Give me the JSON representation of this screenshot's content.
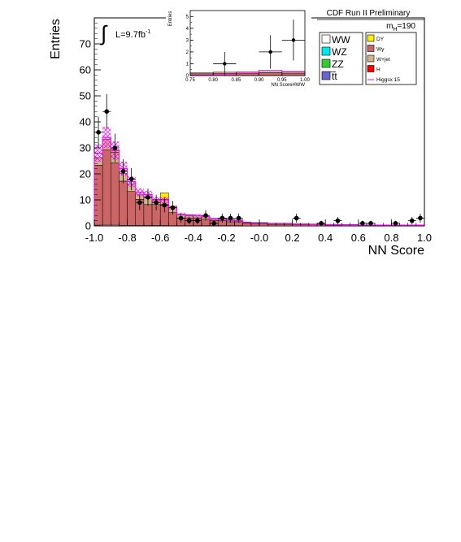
{
  "chart_data": [
    {
      "type": "bar",
      "stacked": true,
      "xlabel": "NN Score",
      "ylabel": "Entries",
      "xlim": [
        -1.0,
        1.0
      ],
      "ylim": [
        0,
        80
      ],
      "x_ticks": [
        "-1.0",
        "-0.8",
        "-0.6",
        "-0.4",
        "-0.2",
        "-0.0",
        "0.2",
        "0.4",
        "0.6",
        "0.8",
        "1.0"
      ],
      "y_ticks": [
        "0",
        "10",
        "20",
        "30",
        "40",
        "50",
        "60",
        "70"
      ],
      "bin_width": 0.05,
      "x": [
        -0.975,
        -0.925,
        -0.875,
        -0.825,
        -0.775,
        -0.725,
        -0.675,
        -0.625,
        -0.575,
        -0.525,
        -0.475,
        -0.425,
        -0.375,
        -0.325,
        -0.275,
        -0.225,
        -0.175,
        -0.125,
        -0.075,
        -0.025,
        0.025,
        0.075,
        0.125,
        0.175,
        0.225,
        0.275,
        0.325,
        0.375,
        0.425,
        0.475,
        0.525,
        0.575,
        0.625,
        0.675,
        0.725,
        0.775,
        0.825,
        0.875,
        0.925,
        0.975
      ],
      "series": [
        {
          "name": "WW",
          "color": "#ffffff",
          "values": [
            0.3,
            0.3,
            0.3,
            0.2,
            0.2,
            0.2,
            0.2,
            0.2,
            0.2,
            0.1,
            0.1,
            0.1,
            0.1,
            0.1,
            0.1,
            0.1,
            0.1,
            0.1,
            0,
            0,
            0,
            0,
            0,
            0,
            0,
            0,
            0,
            0,
            0,
            0,
            0,
            0,
            0,
            0,
            0,
            0,
            0,
            0,
            0,
            0
          ]
        },
        {
          "name": "Wγ",
          "color": "#cc6666",
          "values": [
            23,
            29,
            24,
            17,
            13,
            10,
            8,
            8,
            8,
            5,
            3,
            3,
            3,
            2.5,
            2,
            2,
            1.5,
            1.5,
            1,
            0.8,
            0.8,
            0.6,
            0.6,
            0.6,
            0.5,
            0.5,
            0.4,
            0.4,
            0.3,
            0.3,
            0.3,
            0.3,
            0.2,
            0.2,
            0.2,
            0.2,
            0.2,
            0.2,
            0.2,
            0.2
          ]
        },
        {
          "name": "W+jet",
          "color": "#d2b48c",
          "values": [
            3,
            4,
            4,
            3,
            3,
            2,
            3,
            2,
            2,
            2,
            1.5,
            1.2,
            1,
            1,
            0.8,
            0.8,
            0.8,
            0.7,
            0.5,
            0.5,
            0.5,
            0.4,
            0.4,
            0.4,
            0.3,
            0.3,
            0.3,
            0.3,
            0.3,
            0.3,
            0.2,
            0.2,
            0.2,
            0.2,
            0.2,
            0.2,
            0.2,
            0.2,
            0.2,
            0.2
          ]
        },
        {
          "name": "DY",
          "color": "#ffee00",
          "values": [
            0,
            0,
            1,
            0,
            0,
            0,
            0,
            0,
            2.5,
            0.5,
            0,
            0,
            0,
            0,
            0,
            0,
            0,
            0,
            0,
            0,
            0,
            0,
            0,
            0,
            0,
            0,
            0,
            0,
            0,
            0,
            0,
            0,
            0,
            0,
            0,
            0,
            0,
            0,
            0,
            0
          ]
        },
        {
          "name": "Data",
          "kind": "points",
          "values": [
            36,
            44,
            30,
            21,
            18,
            9,
            11,
            9,
            8,
            7,
            3,
            2,
            2,
            4,
            1,
            3,
            3,
            3,
            0,
            0,
            0,
            0,
            0,
            0,
            3,
            0,
            0,
            1,
            0,
            2,
            0,
            0,
            1,
            1,
            0,
            0,
            1,
            0,
            2,
            3
          ]
        },
        {
          "name": "Higgsx 15",
          "kind": "line",
          "color": "#ff00ff",
          "values": [
            28,
            34,
            29,
            22,
            17,
            13,
            12,
            10,
            10,
            7,
            4.5,
            4,
            4,
            3.5,
            2.6,
            2.6,
            2.1,
            2,
            1.3,
            1,
            1,
            0.8,
            0.8,
            0.8,
            0.6,
            0.6,
            0.5,
            0.5,
            0.4,
            0.4,
            0.3,
            0.3,
            0.3,
            0.3,
            0.3,
            0.3,
            0.3,
            0.3,
            0.3,
            0.3
          ]
        }
      ],
      "annotations": {
        "lumi": "L=9.7fb",
        "lumi_sup": "-1",
        "integral": "∫",
        "header": "CDF Run II Preliminary",
        "mass_label": "m",
        "mass_sub": "H",
        "mass_value": "=190"
      },
      "legend": {
        "placement": "top-right",
        "left": [
          {
            "label": "WW",
            "color": "#ffffff"
          },
          {
            "label": "WZ",
            "color": "#00e5ee"
          },
          {
            "label": "ZZ",
            "color": "#33cc33"
          },
          {
            "label": "t̅t",
            "color": "#6666cc"
          }
        ],
        "right": [
          {
            "label": "DY",
            "color": "#ffee00"
          },
          {
            "label": "Wγ",
            "color": "#cc6666"
          },
          {
            "label": "W+jet",
            "color": "#d2b48c"
          },
          {
            "label": "H",
            "color": "#ff0000"
          },
          {
            "label": "Higgsx 15",
            "color": "#ff00ff",
            "line": true
          }
        ]
      }
    },
    {
      "type": "bar",
      "stacked": true,
      "inset": true,
      "xlabel": "NN ScoreHWW",
      "ylabel": "Entries",
      "xlim": [
        0.75,
        1.0
      ],
      "ylim": [
        0,
        5.5
      ],
      "x_ticks": [
        "0.75",
        "0.80",
        "0.85",
        "0.90",
        "0.95",
        "1.00"
      ],
      "y_ticks": [
        "0",
        "1",
        "2",
        "3",
        "4",
        "5"
      ],
      "bin_width": 0.05,
      "x": [
        0.775,
        0.825,
        0.875,
        0.925,
        0.975
      ],
      "series": [
        {
          "name": "Wγ",
          "color": "#cc6666",
          "values": [
            0.15,
            0.2,
            0.2,
            0.25,
            0.2
          ]
        },
        {
          "name": "W+jet",
          "color": "#d2b48c",
          "values": [
            0.1,
            0.1,
            0.1,
            0.05,
            0.1
          ]
        },
        {
          "name": "Higgsx 15",
          "kind": "line",
          "color": "#ff00ff",
          "values": [
            0.05,
            0.15,
            0.3,
            0.45,
            0.35
          ]
        },
        {
          "name": "Data",
          "kind": "points",
          "values": [
            0,
            1,
            0,
            2,
            3
          ]
        }
      ]
    }
  ]
}
